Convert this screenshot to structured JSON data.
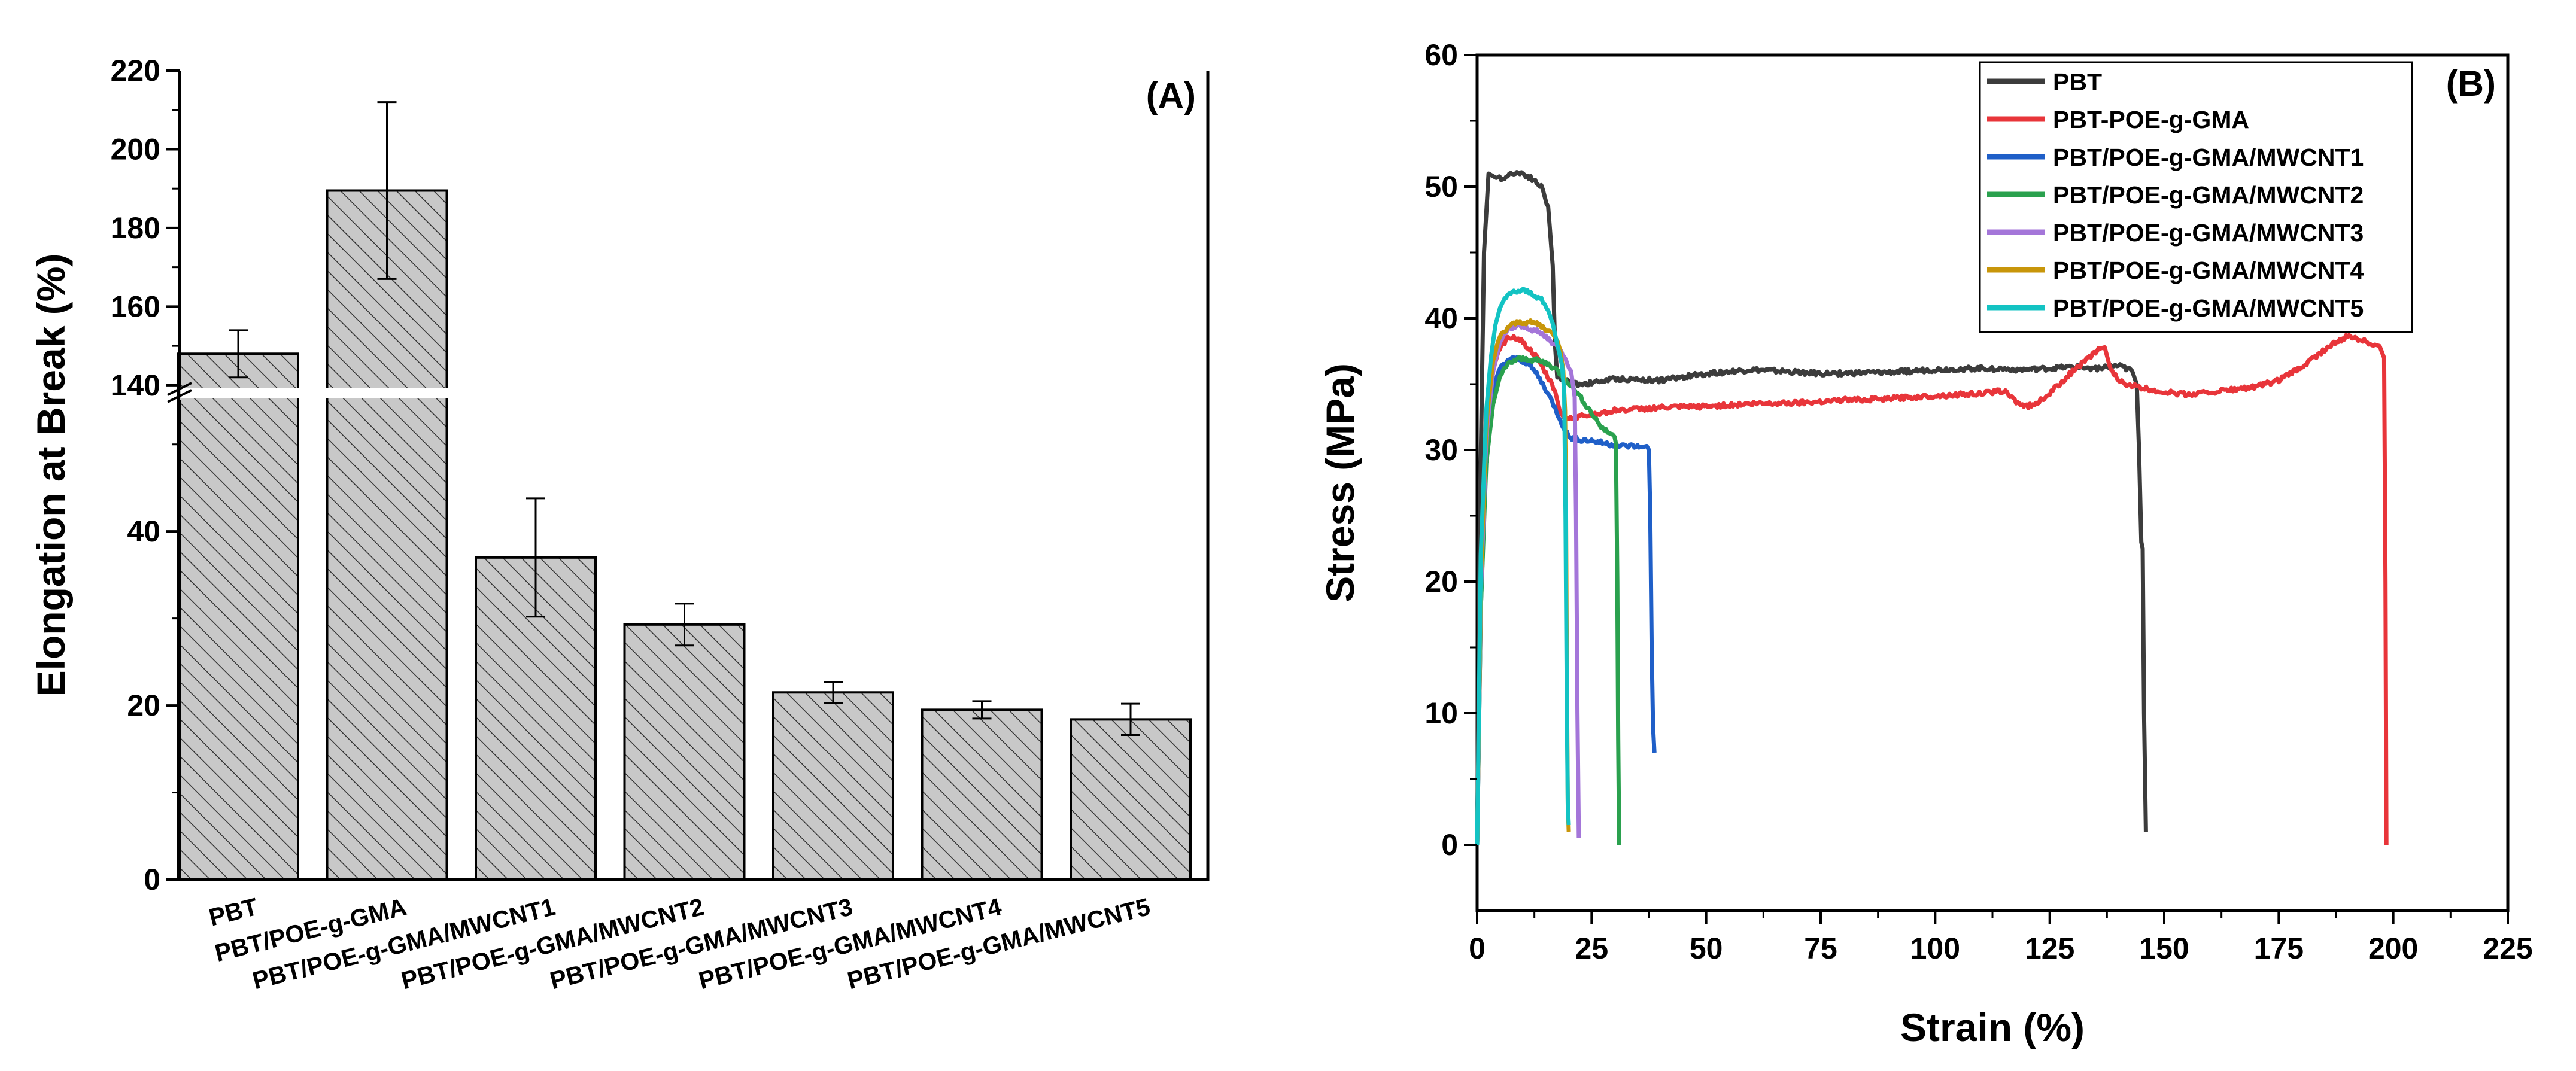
{
  "chart_data": [
    {
      "type": "bar",
      "panel_label": "(A)",
      "ylabel": "Elongation at Break (%)",
      "xlabel": "",
      "broken_axis": true,
      "lower_range": [
        0,
        55
      ],
      "upper_range": [
        138,
        220
      ],
      "lower_ticks": [
        "0",
        "20",
        "40"
      ],
      "upper_ticks": [
        "140",
        "160",
        "180",
        "200",
        "220"
      ],
      "categories": [
        "PBT",
        "PBT/POE-g-GMA",
        "PBT/POE-g-GMA/MWCNT1",
        "PBT/POE-g-GMA/MWCNT2",
        "PBT/POE-g-GMA/MWCNT3",
        "PBT/POE-g-GMA/MWCNT4",
        "PBT/POE-g-GMA/MWCNT5"
      ],
      "values": [
        148,
        189.5,
        37,
        29.3,
        21.5,
        19.5,
        18.4
      ],
      "errors": [
        6,
        22.5,
        6.8,
        2.4,
        1.2,
        1.0,
        1.8
      ],
      "fill": "hatched grey"
    },
    {
      "type": "line",
      "panel_label": "(B)",
      "xlabel": "Strain (%)",
      "ylabel": "Stress (MPa)",
      "xlim": [
        0,
        225
      ],
      "ylim": [
        -5,
        60
      ],
      "xticks": [
        "0",
        "25",
        "50",
        "75",
        "100",
        "125",
        "150",
        "175",
        "200",
        "225"
      ],
      "yticks": [
        "0",
        "10",
        "20",
        "30",
        "40",
        "50",
        "60"
      ],
      "legend_position": "top-right",
      "series": [
        {
          "name": "PBT",
          "color": "#3c3c3c",
          "x": [
            0,
            0.6,
            1.5,
            2.5,
            3.5,
            4.5,
            6,
            8,
            10,
            12,
            14,
            15.5,
            16.5,
            17,
            17.5,
            19,
            22,
            25,
            30,
            40,
            50,
            60,
            75,
            90,
            100,
            110,
            120,
            130,
            135,
            140,
            143,
            144,
            144.5,
            145,
            145.3,
            145.6,
            146
          ],
          "y": [
            0,
            25,
            45,
            51,
            50.8,
            50.6,
            50.7,
            51.1,
            51.0,
            50.6,
            50.0,
            48.5,
            44,
            38,
            35.5,
            35.3,
            35.0,
            35.1,
            35.4,
            35.3,
            35.8,
            36.1,
            35.8,
            35.9,
            36.1,
            36.2,
            36.1,
            36.3,
            36.2,
            36.4,
            36.0,
            35.0,
            30,
            23,
            22.5,
            10,
            1
          ]
        },
        {
          "name": "PBT-POE-g-GMA",
          "color": "#e8353a",
          "x": [
            0,
            0.8,
            2,
            3.5,
            5,
            7,
            9,
            11,
            13,
            15,
            17,
            18,
            19,
            20,
            25,
            30,
            40,
            50,
            60,
            70,
            80,
            90,
            100,
            110,
            115,
            118,
            120,
            122,
            125,
            128,
            131,
            134,
            136,
            137,
            138,
            140,
            145,
            150,
            155,
            160,
            165,
            170,
            175,
            180,
            185,
            188,
            190,
            192,
            194,
            196,
            197,
            198,
            198.3,
            198.5
          ],
          "y": [
            0,
            20,
            32,
            36,
            37.8,
            38.6,
            38.5,
            37.8,
            37.0,
            35.8,
            34.5,
            33.0,
            32.4,
            32.4,
            32.7,
            33.0,
            33.2,
            33.3,
            33.5,
            33.6,
            33.8,
            33.9,
            34.1,
            34.3,
            34.5,
            33.6,
            33.3,
            33.5,
            34.3,
            35.3,
            36.3,
            37.1,
            37.7,
            37.8,
            36.5,
            35.2,
            34.7,
            34.4,
            34.2,
            34.4,
            34.6,
            34.8,
            35.3,
            36.3,
            37.6,
            38.3,
            38.6,
            38.5,
            38.2,
            38.0,
            37.9,
            37.0,
            20,
            0
          ]
        },
        {
          "name": "PBT/POE-g-GMA/MWCNT1",
          "color": "#1f5fc8",
          "x": [
            0,
            0.8,
            2,
            3.5,
            5,
            7,
            9,
            11,
            13,
            15,
            17,
            18.5,
            20,
            22,
            25,
            28,
            31,
            34,
            36,
            37,
            37.5,
            37.8,
            38.1,
            38.4,
            38.7
          ],
          "y": [
            0,
            18,
            30,
            34.5,
            36.2,
            36.9,
            36.9,
            36.6,
            35.8,
            34.6,
            33.2,
            32.0,
            31.0,
            30.8,
            30.7,
            30.5,
            30.3,
            30.3,
            30.2,
            30.3,
            30.0,
            25,
            15,
            9,
            7
          ]
        },
        {
          "name": "PBT/POE-g-GMA/MWCNT2",
          "color": "#2aa14e",
          "x": [
            0,
            0.8,
            2,
            3.5,
            5,
            7,
            9,
            11,
            13,
            15,
            17,
            19,
            21,
            23,
            25,
            27,
            28.5,
            29.5,
            30,
            30.3,
            30.6,
            30.8,
            31
          ],
          "y": [
            0,
            18,
            29,
            33.5,
            35.6,
            36.6,
            36.9,
            36.9,
            36.8,
            36.6,
            36.2,
            35.5,
            34.7,
            33.8,
            32.8,
            31.8,
            31.3,
            31.2,
            31.0,
            30.5,
            20,
            8,
            0
          ]
        },
        {
          "name": "PBT/POE-g-GMA/MWCNT3",
          "color": "#a476d9",
          "x": [
            0,
            0.8,
            2,
            3.5,
            5,
            7,
            9,
            11,
            13,
            15,
            17,
            19,
            20.5,
            21.3,
            21.6,
            21.9,
            22.2
          ],
          "y": [
            0,
            19,
            31,
            36,
            38.2,
            39.2,
            39.4,
            39.3,
            39.0,
            38.6,
            38.0,
            37.2,
            36.0,
            34.0,
            25,
            10,
            0.5
          ]
        },
        {
          "name": "PBT/POE-g-GMA/MWCNT4",
          "color": "#c8960a",
          "x": [
            0,
            0.8,
            2,
            3.5,
            5,
            7,
            9,
            11,
            13,
            15,
            16.5,
            17.5,
            18.2,
            18.8,
            19.2,
            19.4,
            19.6,
            19.8,
            20
          ],
          "y": [
            0,
            20,
            32,
            36.8,
            38.6,
            39.4,
            39.7,
            39.7,
            39.6,
            39.2,
            38.8,
            38.3,
            37.5,
            36.0,
            33.0,
            25,
            12,
            3,
            1
          ]
        },
        {
          "name": "PBT/POE-g-GMA/MWCNT5",
          "color": "#13c3c3",
          "x": [
            0,
            0.8,
            2,
            3,
            4,
            5,
            6,
            8,
            10,
            12,
            14,
            15.5,
            16.5,
            17.5,
            18.5,
            19,
            19.3,
            19.6,
            19.8,
            20
          ],
          "y": [
            0,
            22,
            33,
            37,
            39.5,
            40.8,
            41.5,
            42.0,
            42.1,
            41.9,
            41.4,
            40.6,
            39.6,
            38.0,
            36.5,
            34.5,
            25,
            10,
            3,
            1.5
          ]
        }
      ]
    }
  ]
}
